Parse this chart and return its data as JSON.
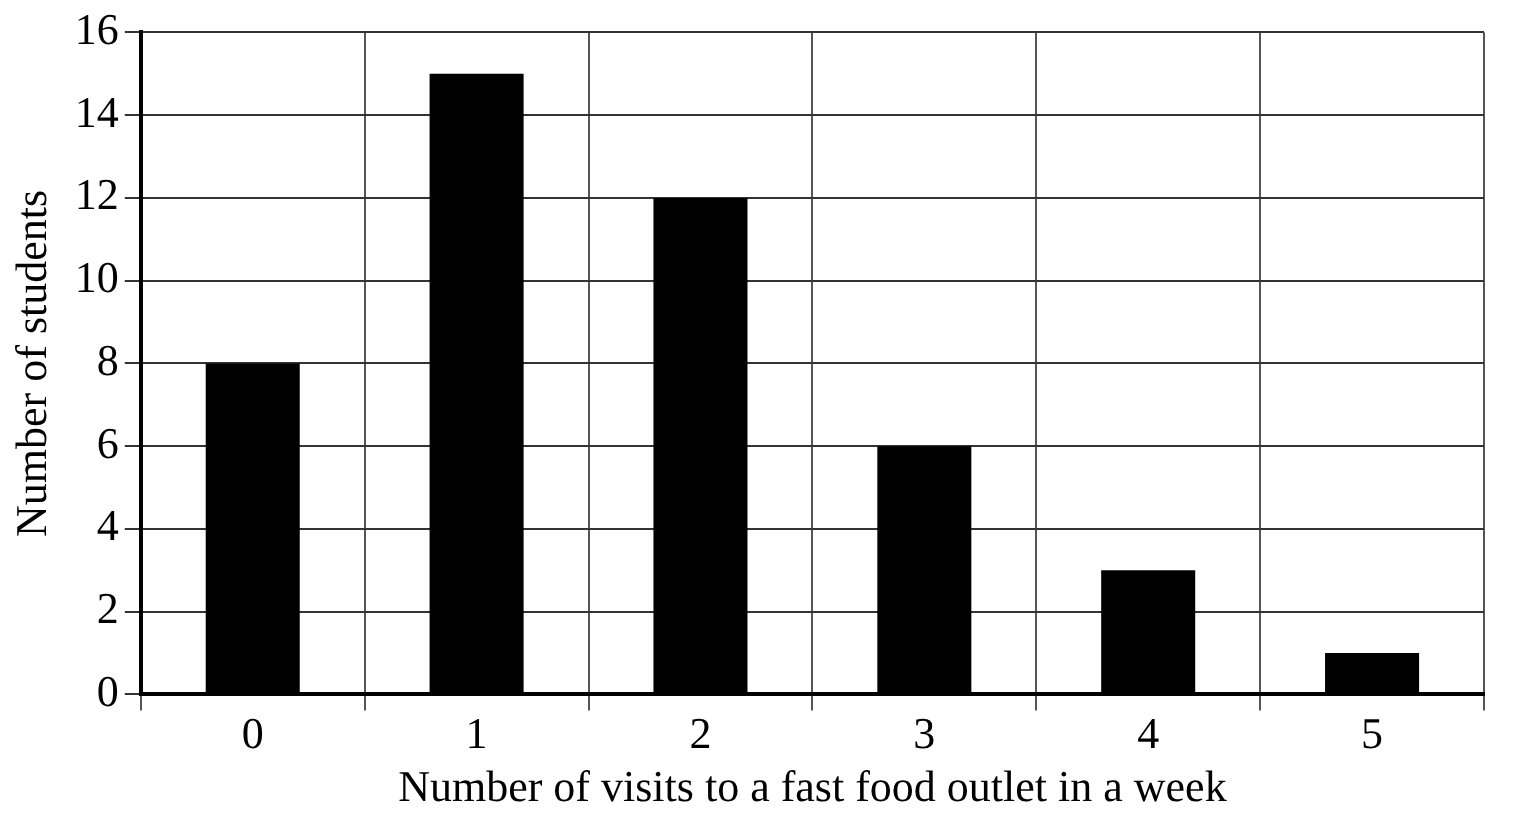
{
  "chart_data": {
    "type": "bar",
    "xlabel": "Number of visits to a fast food outlet in a week",
    "ylabel": "Number of students",
    "categories": [
      "0",
      "1",
      "2",
      "3",
      "4",
      "5"
    ],
    "values": [
      8,
      15,
      12,
      6,
      3,
      1
    ],
    "color": "#000000",
    "ylim": [
      0,
      16
    ],
    "yticks": [
      0,
      2,
      4,
      6,
      8,
      10,
      12,
      14,
      16
    ],
    "grid": true
  }
}
